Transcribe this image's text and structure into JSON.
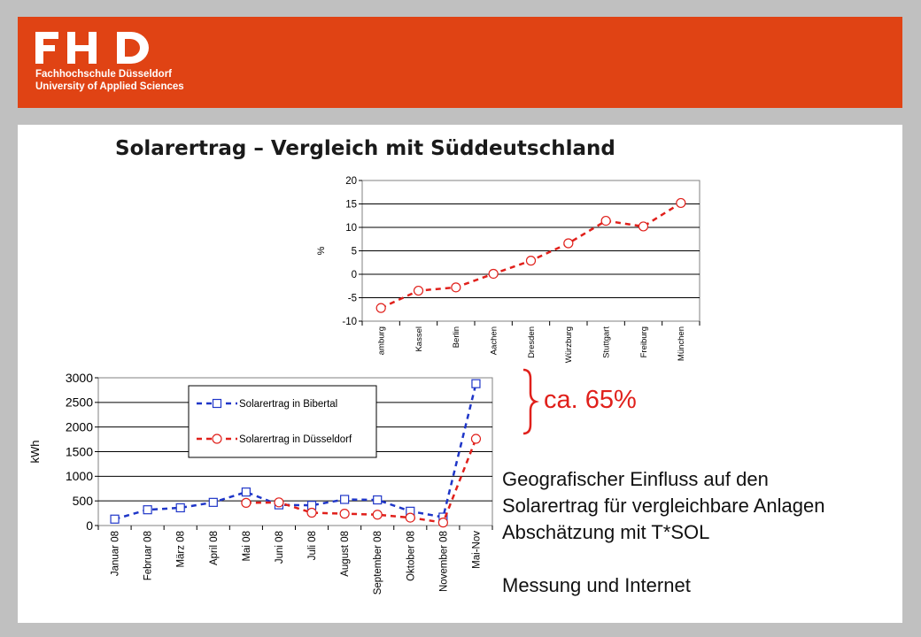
{
  "header": {
    "logo_mark": "FH D",
    "logo_line1": "Fachhochschule Düsseldorf",
    "logo_line2": "University of Applied Sciences",
    "colors": {
      "banner": "#e04314",
      "background": "#c0c0c0"
    }
  },
  "slide": {
    "title": "Solarertrag – Vergleich mit Süddeutschland",
    "annotation": "ca. 65%",
    "text_lines": [
      "Geografischer Einfluss auf den",
      "Solarertrag für vergleichbare Anlagen",
      "Abschätzung mit T*SOL",
      "",
      "Messung und Internet"
    ]
  },
  "chart_data": [
    {
      "type": "line",
      "ylabel": "%",
      "xlabel": "",
      "ylim": [
        -10,
        20
      ],
      "yticks": [
        20,
        15,
        10,
        5,
        0,
        -5,
        -10
      ],
      "grid": true,
      "categories": [
        "amburg",
        "Kassel",
        "Berlin",
        "Aachen",
        "Dresden",
        "Würzburg",
        "Stuttgart",
        "Freiburg",
        "München"
      ],
      "series": [
        {
          "values": [
            -7.2,
            -3.5,
            -2.8,
            0.1,
            2.9,
            6.6,
            11.4,
            10.2,
            15.2
          ],
          "color": "#e0201b",
          "marker": "circle"
        }
      ]
    },
    {
      "type": "line",
      "ylabel": "kWh",
      "xlabel": "",
      "ylim": [
        0,
        3000
      ],
      "yticks": [
        3000,
        2500,
        2000,
        1500,
        1000,
        500,
        0
      ],
      "grid": true,
      "legend": "top-center",
      "categories": [
        "Januar 08",
        "Februar 08",
        "März 08",
        "April 08",
        "Mai 08",
        "Juni 08",
        "Juli 08",
        "August 08",
        "September 08",
        "Oktober 08",
        "November 08",
        "Mai-Nov"
      ],
      "series": [
        {
          "name": "Solarertrag in  Bibertal",
          "values": [
            130,
            320,
            360,
            470,
            680,
            420,
            410,
            530,
            520,
            290,
            170,
            2880
          ],
          "color": "#1f36c8",
          "marker": "square"
        },
        {
          "name": "Solarertrag in Düsseldorf",
          "values": [
            null,
            null,
            null,
            null,
            460,
            470,
            260,
            240,
            220,
            160,
            60,
            1760
          ],
          "color": "#e0201b",
          "marker": "circle"
        }
      ]
    }
  ]
}
